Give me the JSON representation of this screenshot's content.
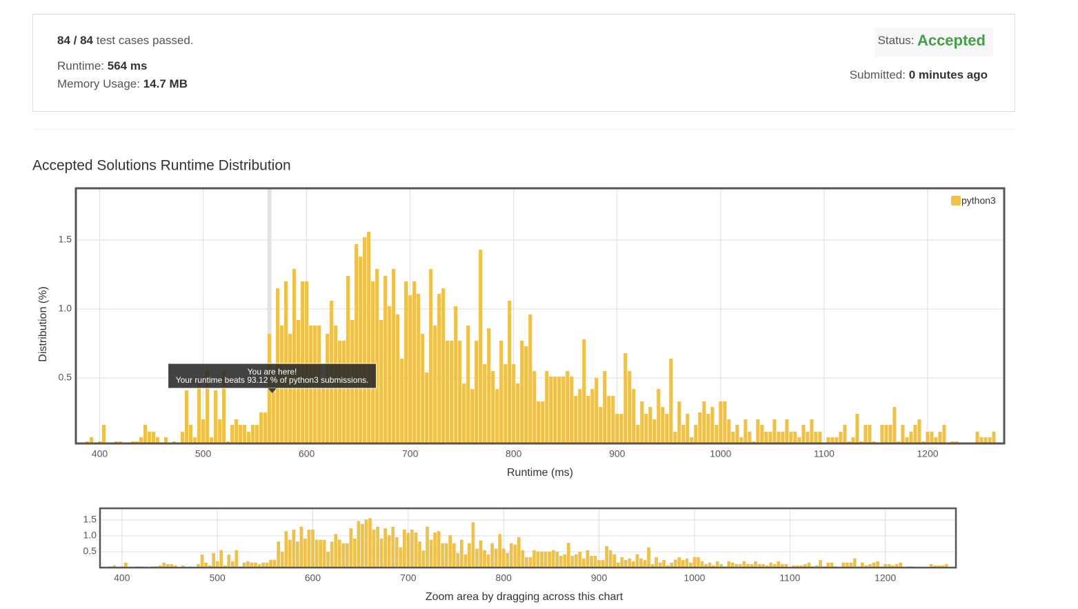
{
  "summary": {
    "passed": "84 / 84",
    "passed_text": "test cases passed.",
    "runtime_label": "Runtime:",
    "runtime": "564 ms",
    "memory_label": "Memory Usage:",
    "memory": "14.7 MB",
    "status_label": "Status:",
    "status": "Accepted",
    "submitted_label": "Submitted:",
    "submitted": "0 minutes ago"
  },
  "section_title": "Accepted Solutions Runtime Distribution",
  "chart_data": {
    "type": "bar",
    "x_label": "Runtime (ms)",
    "y_label": "Distribution (%)",
    "xlim": [
      377,
      1274
    ],
    "xticks": [
      400,
      500,
      600,
      700,
      800,
      900,
      1000,
      1100,
      1200
    ],
    "ylim": [
      0.025,
      1.875
    ],
    "yticks": [
      0.5,
      {
        "value": 1,
        "label": "1.0"
      },
      1.5
    ],
    "grid": true,
    "legend": "top-right",
    "bar_width": 4,
    "highlight_x": 564,
    "tooltip": [
      "You are here!",
      "Your runtime beats 93.12 % of python3 submissions."
    ],
    "series": [
      {
        "name": "python3",
        "color": "#eec14a",
        "x": [
          388,
          392,
          400,
          404,
          416,
          420,
          432,
          436,
          440,
          444,
          448,
          452,
          456,
          464,
          472,
          480,
          484,
          488,
          492,
          496,
          500,
          504,
          508,
          512,
          516,
          520,
          524,
          528,
          532,
          536,
          540,
          544,
          548,
          552,
          556,
          560,
          564,
          568,
          572,
          576,
          580,
          584,
          588,
          592,
          596,
          600,
          604,
          608,
          612,
          616,
          620,
          624,
          628,
          632,
          636,
          640,
          644,
          648,
          652,
          656,
          660,
          664,
          668,
          672,
          676,
          680,
          684,
          688,
          692,
          696,
          700,
          704,
          708,
          712,
          716,
          720,
          724,
          728,
          732,
          736,
          740,
          744,
          748,
          752,
          756,
          760,
          764,
          768,
          772,
          776,
          780,
          784,
          788,
          792,
          796,
          800,
          804,
          808,
          812,
          816,
          820,
          824,
          828,
          832,
          836,
          840,
          844,
          848,
          852,
          856,
          860,
          864,
          868,
          872,
          876,
          880,
          884,
          888,
          892,
          896,
          900,
          904,
          908,
          912,
          916,
          920,
          924,
          928,
          932,
          936,
          940,
          944,
          948,
          952,
          956,
          960,
          964,
          968,
          972,
          976,
          980,
          984,
          988,
          992,
          996,
          1000,
          1004,
          1008,
          1012,
          1016,
          1020,
          1024,
          1028,
          1032,
          1036,
          1040,
          1044,
          1048,
          1052,
          1056,
          1060,
          1064,
          1068,
          1072,
          1076,
          1080,
          1084,
          1088,
          1092,
          1096,
          1104,
          1108,
          1112,
          1116,
          1120,
          1124,
          1128,
          1132,
          1136,
          1140,
          1144,
          1148,
          1156,
          1160,
          1164,
          1168,
          1172,
          1176,
          1180,
          1184,
          1188,
          1192,
          1196,
          1200,
          1204,
          1208,
          1212,
          1216,
          1224,
          1228,
          1248,
          1252,
          1256,
          1260,
          1264
        ],
        "values": [
          0.04,
          0.07,
          0.04,
          0.16,
          0.04,
          0.04,
          0.04,
          0.04,
          0.07,
          0.16,
          0.11,
          0.11,
          0.07,
          0.07,
          0.04,
          0.11,
          0.41,
          0.16,
          0.07,
          0.46,
          0.2,
          0.55,
          0.07,
          0.41,
          0.2,
          0.55,
          0.04,
          0.16,
          0.2,
          0.16,
          0.16,
          0.11,
          0.16,
          0.16,
          0.25,
          0.25,
          0.82,
          0.5,
          1.15,
          0.88,
          1.2,
          0.82,
          1.29,
          0.92,
          1.2,
          1.2,
          0.88,
          0.88,
          0.88,
          0.5,
          0.82,
          1.06,
          0.88,
          0.77,
          0.77,
          1.24,
          0.92,
          1.47,
          1.38,
          1.52,
          1.56,
          1.2,
          1.29,
          0.92,
          1.24,
          1.02,
          1.29,
          0.96,
          0.64,
          1.2,
          1.1,
          1.2,
          1.11,
          0.82,
          0.54,
          1.29,
          0.88,
          1.11,
          1.15,
          0.77,
          0.77,
          1.02,
          0.77,
          0.46,
          0.88,
          0.42,
          0.77,
          1.43,
          0.6,
          0.86,
          0.55,
          0.42,
          0.77,
          0.6,
          1.06,
          0.6,
          0.46,
          0.77,
          0.73,
          0.96,
          0.55,
          0.33,
          0.33,
          0.55,
          0.51,
          0.51,
          0.51,
          0.51,
          0.55,
          0.51,
          0.37,
          0.42,
          0.78,
          0.37,
          0.42,
          0.5,
          0.29,
          0.55,
          0.37,
          0.37,
          0.24,
          0.24,
          0.68,
          0.55,
          0.42,
          0.16,
          0.33,
          0.24,
          0.29,
          0.2,
          0.42,
          0.29,
          0.24,
          0.64,
          0.11,
          0.33,
          0.16,
          0.24,
          0.07,
          0.16,
          0.25,
          0.33,
          0.24,
          0.29,
          0.16,
          0.33,
          0.33,
          0.2,
          0.11,
          0.16,
          0.07,
          0.2,
          0.11,
          0.04,
          0.2,
          0.16,
          0.11,
          0.11,
          0.2,
          0.11,
          0.11,
          0.2,
          0.11,
          0.11,
          0.07,
          0.16,
          0.11,
          0.2,
          0.11,
          0.11,
          0.07,
          0.07,
          0.07,
          0.11,
          0.16,
          0.04,
          0.07,
          0.24,
          0.04,
          0.16,
          0.16,
          0.04,
          0.16,
          0.16,
          0.16,
          0.29,
          0.04,
          0.16,
          0.07,
          0.11,
          0.16,
          0.2,
          0.04,
          0.11,
          0.11,
          0.07,
          0.11,
          0.16,
          0.04,
          0.04,
          0.11,
          0.07,
          0.07,
          0.07,
          0.11
        ]
      }
    ],
    "navigator": {
      "ylim": [
        0,
        1.87
      ],
      "yticks": [
        0.5,
        {
          "value": 1,
          "label": "1.0"
        },
        1.5
      ],
      "caption": "Zoom area by dragging across this chart"
    }
  }
}
